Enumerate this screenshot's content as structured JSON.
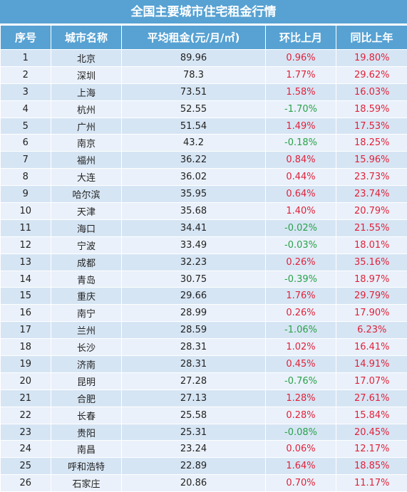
{
  "title": "全国主要城市住宅租金行情",
  "headers": [
    "序号",
    "城市名称",
    "平均租金(元/月/㎡)",
    "环比上月",
    "同比上年"
  ],
  "colors": {
    "header_bg": "#57a2d3",
    "row_odd": "#d6e5f4",
    "row_even": "#eaf1fa",
    "positive": "#e0223a",
    "negative": "#2aa14a"
  },
  "rows": [
    [
      "1",
      "北京",
      "89.96",
      "0.96%",
      "19.80%"
    ],
    [
      "2",
      "深圳",
      "78.3",
      "1.77%",
      "29.62%"
    ],
    [
      "3",
      "上海",
      "73.51",
      "1.58%",
      "16.03%"
    ],
    [
      "4",
      "杭州",
      "52.55",
      "-1.70%",
      "18.59%"
    ],
    [
      "5",
      "广州",
      "51.54",
      "1.49%",
      "17.53%"
    ],
    [
      "6",
      "南京",
      "43.2",
      "-0.18%",
      "18.25%"
    ],
    [
      "7",
      "福州",
      "36.22",
      "0.84%",
      "15.96%"
    ],
    [
      "8",
      "大连",
      "36.02",
      "0.44%",
      "23.73%"
    ],
    [
      "9",
      "哈尔滨",
      "35.95",
      "0.64%",
      "23.74%"
    ],
    [
      "10",
      "天津",
      "35.68",
      "1.40%",
      "20.79%"
    ],
    [
      "11",
      "海口",
      "34.41",
      "-0.02%",
      "21.55%"
    ],
    [
      "12",
      "宁波",
      "33.49",
      "-0.03%",
      "18.01%"
    ],
    [
      "13",
      "成都",
      "32.23",
      "0.26%",
      "35.16%"
    ],
    [
      "14",
      "青岛",
      "30.75",
      "-0.39%",
      "18.97%"
    ],
    [
      "15",
      "重庆",
      "29.66",
      "1.76%",
      "29.79%"
    ],
    [
      "16",
      "南宁",
      "28.99",
      "0.26%",
      "17.90%"
    ],
    [
      "17",
      "兰州",
      "28.59",
      "-1.06%",
      "6.23%"
    ],
    [
      "18",
      "长沙",
      "28.31",
      "1.02%",
      "16.41%"
    ],
    [
      "19",
      "济南",
      "28.31",
      "0.45%",
      "14.91%"
    ],
    [
      "20",
      "昆明",
      "27.28",
      "-0.76%",
      "17.07%"
    ],
    [
      "21",
      "合肥",
      "27.13",
      "1.28%",
      "27.61%"
    ],
    [
      "22",
      "长春",
      "25.58",
      "0.28%",
      "15.84%"
    ],
    [
      "23",
      "贵阳",
      "25.31",
      "-0.08%",
      "20.45%"
    ],
    [
      "24",
      "南昌",
      "23.24",
      "0.06%",
      "12.17%"
    ],
    [
      "25",
      "呼和浩特",
      "22.89",
      "1.64%",
      "18.85%"
    ],
    [
      "26",
      "石家庄",
      "20.86",
      "0.70%",
      "11.17%"
    ]
  ]
}
